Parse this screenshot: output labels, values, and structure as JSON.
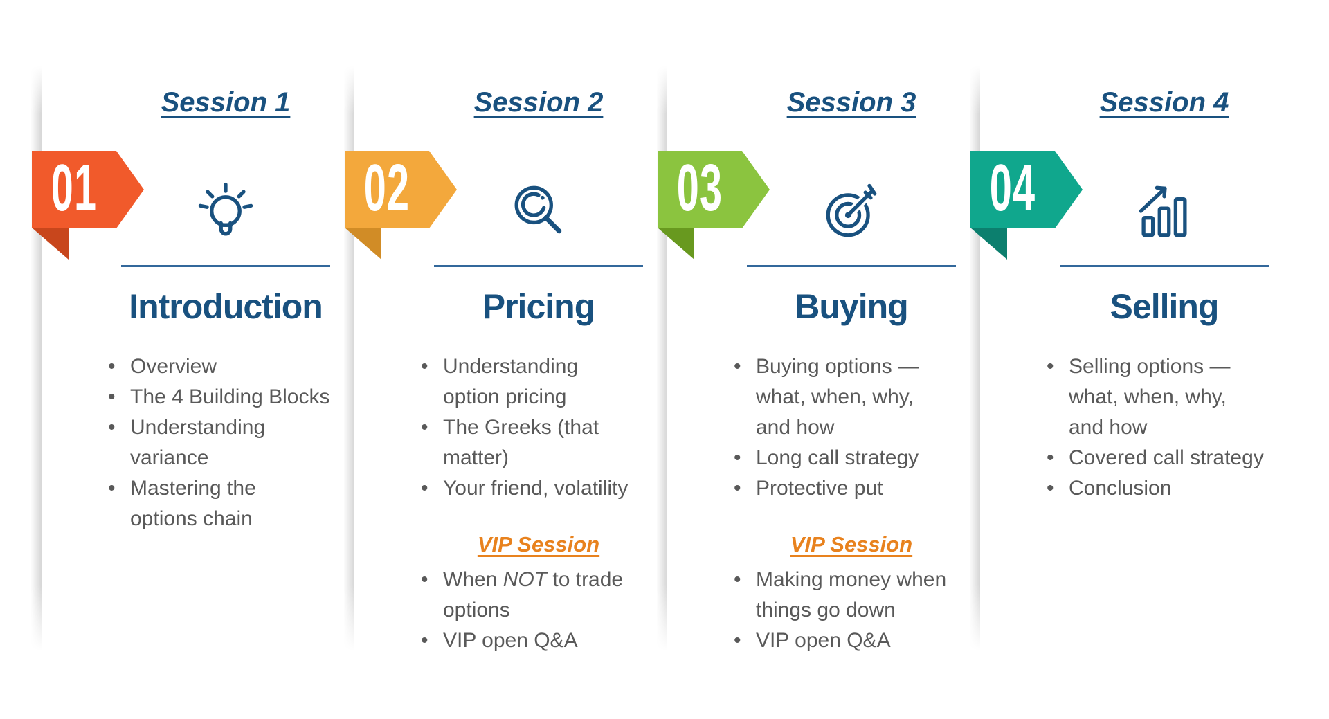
{
  "colors": {
    "heading_blue": "#19517F",
    "divider_blue": "#33689B",
    "body_gray": "#595959",
    "vip_orange": "#E8821E",
    "background": "#FFFFFF"
  },
  "sessions": [
    {
      "number": "01",
      "header": "Session 1",
      "icon": "lightbulb-icon",
      "badge_color": "#F15A2B",
      "badge_fold_color": "#C8461C",
      "title": "Introduction",
      "topics": [
        [
          {
            "t": "Overview"
          }
        ],
        [
          {
            "t": "The 4 Building Blocks"
          }
        ],
        [
          {
            "t": "Understanding\nvariance"
          }
        ],
        [
          {
            "t": "Mastering the\noptions chain"
          }
        ]
      ],
      "vip": null
    },
    {
      "number": "02",
      "header": "Session 2",
      "icon": "magnifier-icon",
      "badge_color": "#F3A83C",
      "badge_fold_color": "#D18C26",
      "title": "Pricing",
      "topics": [
        [
          {
            "t": "Understanding\noption pricing"
          }
        ],
        [
          {
            "t": "The Greeks (that\nmatter)"
          }
        ],
        [
          {
            "t": "Your friend, volatility"
          }
        ]
      ],
      "vip": {
        "header": "VIP Session",
        "topics": [
          [
            {
              "t": "When "
            },
            {
              "t": "NOT",
              "i": true
            },
            {
              "t": " to trade\noptions"
            }
          ],
          [
            {
              "t": "VIP open Q&A"
            }
          ]
        ]
      }
    },
    {
      "number": "03",
      "header": "Session 3",
      "icon": "target-icon",
      "badge_color": "#8BC43F",
      "badge_fold_color": "#68991F",
      "title": "Buying",
      "topics": [
        [
          {
            "t": "Buying options —\nwhat, when, why,\nand how"
          }
        ],
        [
          {
            "t": "Long call strategy"
          }
        ],
        [
          {
            "t": "Protective put"
          }
        ]
      ],
      "vip": {
        "header": "VIP Session",
        "topics": [
          [
            {
              "t": "Making money when\nthings go down"
            }
          ],
          [
            {
              "t": "VIP open Q&A"
            }
          ]
        ]
      }
    },
    {
      "number": "04",
      "header": "Session 4",
      "icon": "bar-chart-icon",
      "badge_color": "#10A78D",
      "badge_fold_color": "#0C7F6E",
      "title": "Selling",
      "topics": [
        [
          {
            "t": "Selling options —\nwhat, when, why,\nand how"
          }
        ],
        [
          {
            "t": "Covered call strategy"
          }
        ],
        [
          {
            "t": "Conclusion"
          }
        ]
      ],
      "vip": null
    }
  ]
}
